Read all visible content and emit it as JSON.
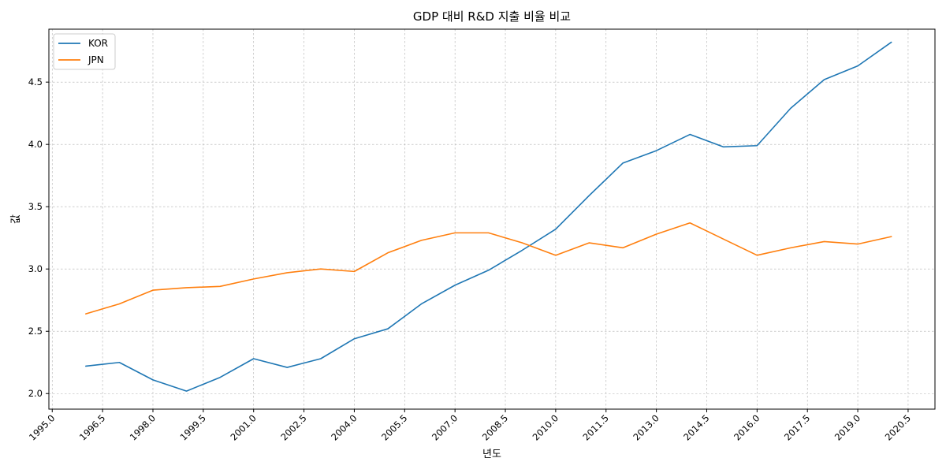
{
  "chart_data": {
    "type": "line",
    "title": "GDP 대비 R&D 지출 비율 비교",
    "xlabel": "년도",
    "ylabel": "값",
    "xlim": [
      1994.9,
      2021.3
    ],
    "ylim": [
      1.875,
      4.925
    ],
    "grid": true,
    "legend_position": "upper-left",
    "x_ticks": [
      1995.0,
      1996.5,
      1998.0,
      1999.5,
      2001.0,
      2002.5,
      2004.0,
      2005.5,
      2007.0,
      2008.5,
      2010.0,
      2011.5,
      2013.0,
      2014.5,
      2016.0,
      2017.5,
      2019.0,
      2020.5
    ],
    "x_tick_labels": [
      "1995.0",
      "1996.5",
      "1998.0",
      "1999.5",
      "2001.0",
      "2002.5",
      "2004.0",
      "2005.5",
      "2007.0",
      "2008.5",
      "2010.0",
      "2011.5",
      "2013.0",
      "2014.5",
      "2016.0",
      "2017.5",
      "2019.0",
      "2020.5"
    ],
    "y_ticks": [
      2.0,
      2.5,
      3.0,
      3.5,
      4.0,
      4.5
    ],
    "y_tick_labels": [
      "2.0",
      "2.5",
      "3.0",
      "3.5",
      "4.0",
      "4.5"
    ],
    "x": [
      1996,
      1997,
      1998,
      1999,
      2000,
      2001,
      2002,
      2003,
      2004,
      2005,
      2006,
      2007,
      2008,
      2009,
      2010,
      2011,
      2012,
      2013,
      2014,
      2015,
      2016,
      2017,
      2018,
      2019,
      2020
    ],
    "series": [
      {
        "name": "KOR",
        "color": "#1f77b4",
        "values": [
          2.22,
          2.25,
          2.11,
          2.02,
          2.13,
          2.28,
          2.21,
          2.28,
          2.44,
          2.52,
          2.72,
          2.87,
          2.99,
          3.15,
          3.32,
          3.59,
          3.85,
          3.95,
          4.08,
          3.98,
          3.99,
          4.29,
          4.52,
          4.63,
          4.82
        ]
      },
      {
        "name": "JPN",
        "color": "#ff7f0e",
        "values": [
          2.64,
          2.72,
          2.83,
          2.85,
          2.86,
          2.92,
          2.97,
          3.0,
          2.98,
          3.13,
          3.23,
          3.29,
          3.29,
          3.21,
          3.11,
          3.21,
          3.17,
          3.28,
          3.37,
          3.24,
          3.11,
          3.17,
          3.22,
          3.2,
          3.26
        ]
      }
    ]
  }
}
